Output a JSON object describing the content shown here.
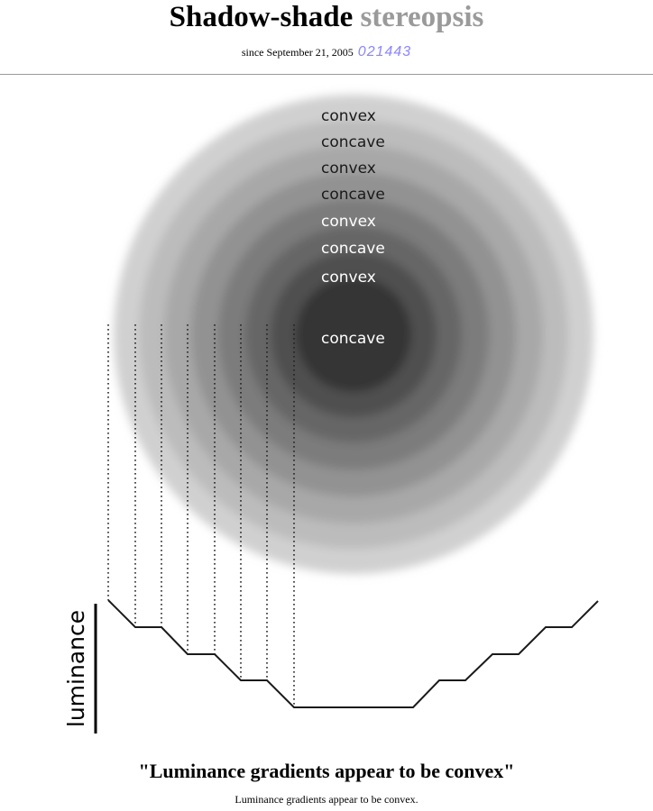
{
  "header": {
    "title_part1": "Shadow-shade",
    "title_part2": "stereopsis",
    "since_text": "since September 21, 2005",
    "counter": "021443"
  },
  "figure": {
    "ring_labels": [
      "convex",
      "concave",
      "convex",
      "concave",
      "convex",
      "concave",
      "convex",
      "concave"
    ],
    "axis_label": "luminance",
    "ring_greys": [
      "#d0d0d0",
      "#bcbcbc",
      "#a8a8a8",
      "#929292",
      "#7c7c7c",
      "#666666",
      "#505050",
      "#363636"
    ]
  },
  "caption": {
    "title": "\"Luminance gradients appear to be convex\"",
    "text": "Luminance gradients appear to be convex."
  }
}
